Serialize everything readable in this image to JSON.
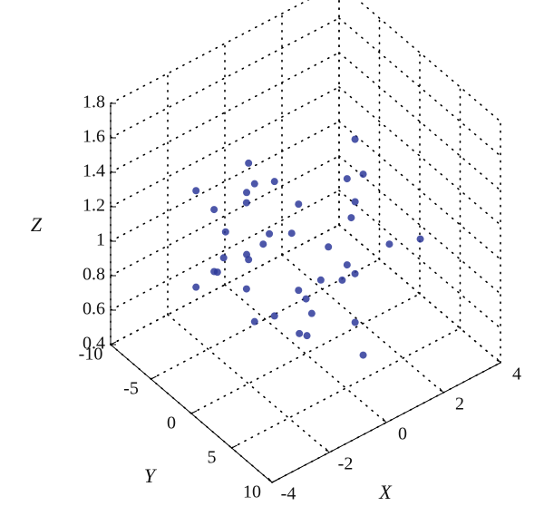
{
  "chart_data": {
    "type": "scatter3d",
    "xlabel": "X",
    "ylabel": "Y",
    "zlabel": "Z",
    "color": "#2e3a9a",
    "grid": true,
    "xlim": [
      -4,
      4
    ],
    "ylim": [
      -10,
      10
    ],
    "zlim": [
      0.4,
      1.8
    ],
    "xticks": [
      -4,
      -2,
      0,
      2,
      4
    ],
    "yticks": [
      -10,
      -5,
      0,
      5,
      10
    ],
    "zticks": [
      0.4,
      0.6,
      0.8,
      1,
      1.2,
      1.4,
      1.6,
      1.8
    ],
    "x": [
      2.37,
      2.02,
      1.17,
      0.32,
      -0.03,
      0.32,
      1.17,
      2.02,
      3.17,
      2.58,
      1.17,
      -0.24,
      -0.83,
      -0.24,
      1.17,
      2.58,
      -1.55,
      -1.78,
      -2.35,
      -2.92,
      -3.15,
      -2.92,
      -2.35,
      -1.78,
      -1.05,
      -1.43,
      -2.35,
      -3.27,
      -3.65,
      -3.27,
      -2.35,
      -1.43,
      0.05,
      -0.5,
      0.5,
      1.6,
      1.0,
      -1.2,
      -2.8,
      0.8
    ],
    "y": [
      2,
      -2,
      2,
      -2,
      2,
      -2,
      2,
      -2,
      3,
      -3,
      3,
      -3,
      3,
      -3,
      3,
      -3,
      1,
      -1,
      1,
      -1,
      1,
      -1,
      1,
      -1,
      2,
      -2,
      2,
      -2,
      2,
      -2,
      2,
      -2,
      0,
      1,
      -1,
      0,
      1,
      -1,
      0,
      0
    ],
    "z": [
      0.91,
      1.16,
      1.26,
      1.16,
      0.91,
      0.66,
      0.56,
      0.66,
      0.91,
      1.3,
      1.46,
      1.3,
      0.91,
      0.52,
      0.41,
      0.52,
      1.27,
      1.45,
      1.52,
      1.45,
      1.27,
      1.09,
      1.02,
      1.09,
      1.27,
      1.55,
      1.67,
      1.55,
      1.27,
      0.99,
      0.87,
      0.99,
      0.5,
      0.6,
      0.55,
      1.05,
      0.78,
      1.1,
      1.35,
      0.95
    ]
  }
}
